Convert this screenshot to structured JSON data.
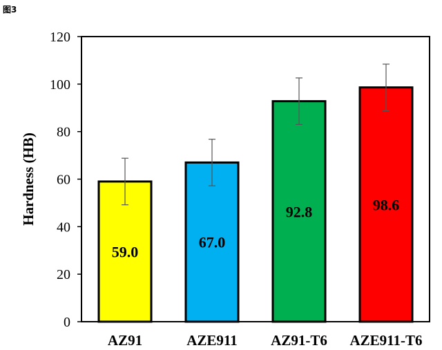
{
  "figure_label": "图3",
  "chart_data": {
    "type": "bar",
    "categories": [
      "AZ91",
      "AZE911",
      "AZ91-T6",
      "AZE911-T6"
    ],
    "values": [
      59.0,
      67.0,
      92.8,
      98.6
    ],
    "value_labels": [
      "59.0",
      "67.0",
      "92.8",
      "98.6"
    ],
    "error": [
      9.8,
      9.8,
      9.8,
      9.8
    ],
    "colors": [
      "#FFFF00",
      "#00B0F0",
      "#00B050",
      "#FF0000"
    ],
    "xlabel": "",
    "ylabel": "Hardness (HB)",
    "ylim": [
      0,
      120
    ],
    "yticks": [
      0,
      20,
      40,
      60,
      80,
      100,
      120
    ],
    "grid": false,
    "legend": "none"
  }
}
